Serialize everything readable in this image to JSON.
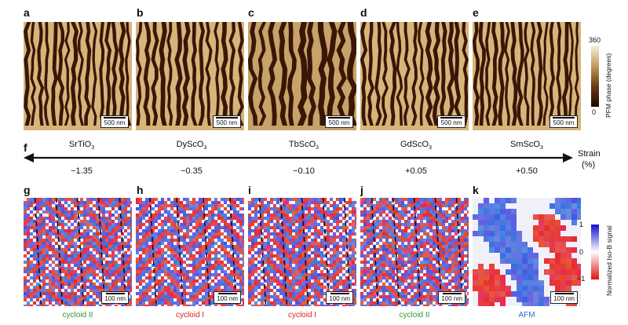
{
  "top_row": {
    "panels": [
      {
        "label": "a",
        "scale": "500 nm"
      },
      {
        "label": "b",
        "scale": "500 nm"
      },
      {
        "label": "c",
        "scale": "500 nm"
      },
      {
        "label": "d",
        "scale": "500 nm"
      },
      {
        "label": "e",
        "scale": "500 nm"
      }
    ],
    "colorbar": {
      "max": "360",
      "min": "0",
      "title": "PFM phase (degrees)",
      "colors": [
        "#1a0a03",
        "#f5ecd2"
      ]
    }
  },
  "strain_axis": {
    "label": "f",
    "substrates": [
      {
        "base": "SrTiO",
        "sub": "3",
        "value": "−1.35"
      },
      {
        "base": "DyScO",
        "sub": "3",
        "value": "−0.35"
      },
      {
        "base": "TbScO",
        "sub": "3",
        "value": "−0.10"
      },
      {
        "base": "GdScO",
        "sub": "3",
        "value": "+0.05"
      },
      {
        "base": "SmScO",
        "sub": "3",
        "value": "+0.50"
      }
    ],
    "title_line1": "Strain",
    "title_line2": "(%)"
  },
  "bottom_row": {
    "panels": [
      {
        "label": "g",
        "scale": "100 nm",
        "caption": "cycloid II",
        "caption_color": "#2a9a2a"
      },
      {
        "label": "h",
        "scale": "100 nm",
        "caption": "cycloid I",
        "caption_color": "#e02020"
      },
      {
        "label": "i",
        "scale": "100 nm",
        "caption": "cycloid I",
        "caption_color": "#e02020"
      },
      {
        "label": "j",
        "scale": "100 nm",
        "caption": "cycloid II",
        "caption_color": "#2a9a2a"
      },
      {
        "label": "k",
        "scale": "100 nm",
        "caption": "AFM",
        "caption_color": "#2a6fd6"
      }
    ],
    "colorbar": {
      "max": "1",
      "mid": "0",
      "min": "−1",
      "title": "Normalized Iso-B signal",
      "colors": [
        "#e01010",
        "#ffffff",
        "#1010d0"
      ]
    }
  }
}
